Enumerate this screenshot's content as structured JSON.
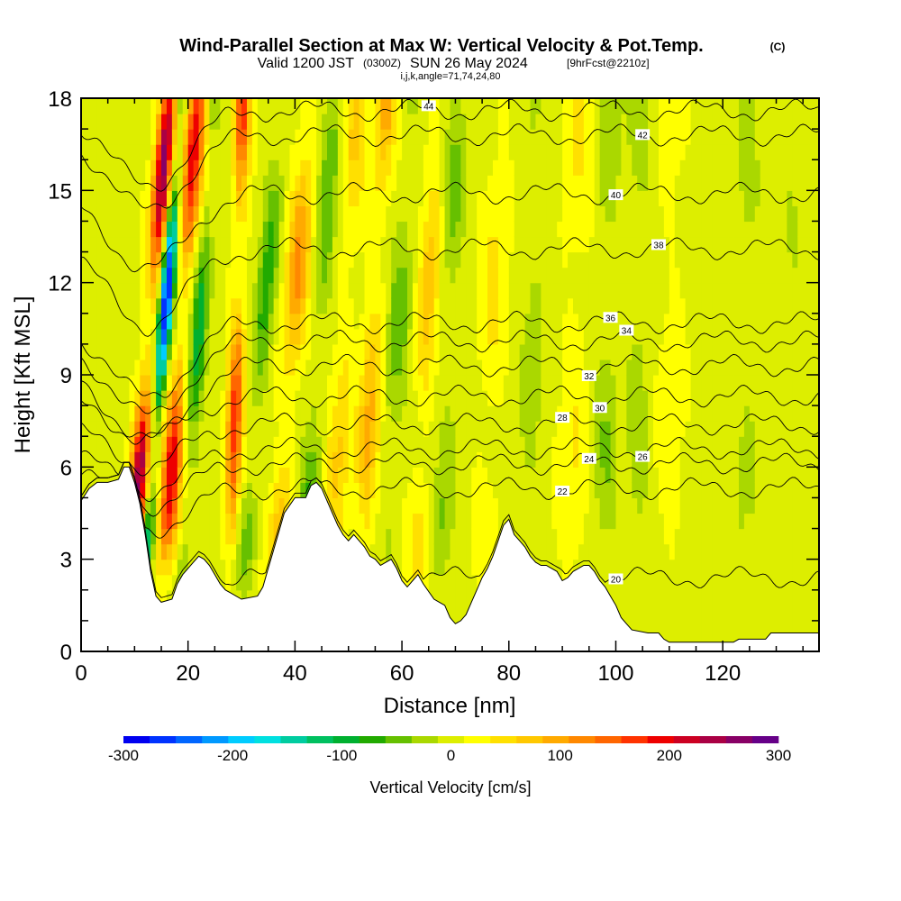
{
  "chart_data": {
    "type": "heatmap",
    "title": "Wind-Parallel Section at Max W: Vertical Velocity & Pot.Temp.",
    "title_mark": "(C)",
    "subtitle_valid": "Valid 1200 JST",
    "subtitle_utc": "(0300Z)",
    "subtitle_date": "SUN 26 May 2024",
    "subtitle_fcst": "[9hrFcst@2210z]",
    "subtitle_indices": "i,j,k,angle=71,74,24,80",
    "xlabel": "Distance [nm]",
    "ylabel": "Height [Kft MSL]",
    "xlim": [
      0,
      138
    ],
    "ylim": [
      0,
      18
    ],
    "x_ticks": [
      "0",
      "20",
      "40",
      "60",
      "80",
      "100",
      "120"
    ],
    "y_ticks": [
      "0",
      "3",
      "6",
      "9",
      "12",
      "15",
      "18"
    ],
    "colorbar": {
      "label": "Vertical Velocity [cm/s]",
      "range": [
        -300,
        300
      ],
      "ticks": [
        "-300",
        "-200",
        "-100",
        "0",
        "100",
        "200",
        "300"
      ],
      "colors": [
        "#0000f0",
        "#0033ff",
        "#0066ff",
        "#0099ff",
        "#00ccff",
        "#00e0e0",
        "#00cca0",
        "#00c060",
        "#00b030",
        "#22aa00",
        "#66c000",
        "#aad800",
        "#ddee00",
        "#ffff00",
        "#ffe000",
        "#ffc800",
        "#ffaa00",
        "#ff8800",
        "#ff6600",
        "#ff3300",
        "#ee0000",
        "#cc0022",
        "#aa0044",
        "#880066",
        "#660088"
      ]
    },
    "theta_contour_labels": [
      "20",
      "22",
      "24",
      "26",
      "28",
      "30",
      "32",
      "34",
      "36",
      "38",
      "40",
      "42",
      "44"
    ],
    "theta_contours": [
      {
        "label": "20",
        "base": 2.4,
        "lx": 100
      },
      {
        "label": "22",
        "base": 5.3,
        "lx": 90
      },
      {
        "label": "24",
        "base": 6.1,
        "lx": 95
      },
      {
        "label": "26",
        "base": 6.6,
        "lx": 105
      },
      {
        "label": "28",
        "base": 7.4,
        "lx": 90
      },
      {
        "label": "30",
        "base": 8.3,
        "lx": 97
      },
      {
        "label": "32",
        "base": 9.3,
        "lx": 95
      },
      {
        "label": "34",
        "base": 10.1,
        "lx": 102
      },
      {
        "label": "36",
        "base": 10.7,
        "lx": 99
      },
      {
        "label": "38",
        "base": 13.1,
        "lx": 108
      },
      {
        "label": "40",
        "base": 14.9,
        "lx": 100
      },
      {
        "label": "42",
        "base": 16.8,
        "lx": 105
      },
      {
        "label": "44",
        "base": 17.6,
        "lx": 65
      }
    ],
    "w_features": [
      {
        "x": 11,
        "w": 1.6,
        "amp": 260,
        "tilt": 0.45
      },
      {
        "x": 13.5,
        "w": 1.2,
        "amp": -300,
        "tilt": 0.45
      },
      {
        "x": 17,
        "w": 1.8,
        "amp": 200,
        "tilt": 0.4
      },
      {
        "x": 20.5,
        "w": 1.5,
        "amp": -110,
        "tilt": 0.35
      },
      {
        "x": 28.5,
        "w": 1.4,
        "amp": 170,
        "tilt": 0.15
      },
      {
        "x": 32,
        "w": 1.8,
        "amp": -90,
        "tilt": 0.45
      },
      {
        "x": 38,
        "w": 2.2,
        "amp": 110,
        "tilt": 0.4
      },
      {
        "x": 43,
        "w": 2.0,
        "amp": -70,
        "tilt": 0.35
      },
      {
        "x": 48,
        "w": 2.2,
        "amp": 60,
        "tilt": 0.3
      },
      {
        "x": 53.5,
        "w": 2.0,
        "amp": 90,
        "tilt": 0.3
      },
      {
        "x": 58,
        "w": 2.2,
        "amp": -60,
        "tilt": 0.3
      },
      {
        "x": 63.5,
        "w": 2.0,
        "amp": 70,
        "tilt": 0.25
      },
      {
        "x": 68,
        "w": 2.0,
        "amp": -50,
        "tilt": 0.2
      },
      {
        "x": 76,
        "w": 2.4,
        "amp": 40,
        "tilt": 0.2
      },
      {
        "x": 84,
        "w": 2.4,
        "amp": -35,
        "tilt": 0.1
      },
      {
        "x": 92,
        "w": 2.6,
        "amp": 35,
        "tilt": 0.1
      },
      {
        "x": 98,
        "w": 2.2,
        "amp": -45,
        "tilt": 0.1
      },
      {
        "x": 104,
        "w": 2.2,
        "amp": -35,
        "tilt": 0.05
      },
      {
        "x": 110,
        "w": 2.4,
        "amp": 25,
        "tilt": 0.05
      },
      {
        "x": 124,
        "w": 3.0,
        "amp": -25,
        "tilt": 0.05
      },
      {
        "x": 132,
        "w": 3.0,
        "amp": -20,
        "tilt": 0.05
      }
    ],
    "terrain_kft": [
      [
        0,
        4.9
      ],
      [
        1.5,
        5.3
      ],
      [
        3,
        5.5
      ],
      [
        5,
        5.5
      ],
      [
        7,
        5.6
      ],
      [
        8,
        6.0
      ],
      [
        9,
        6.0
      ],
      [
        10,
        5.5
      ],
      [
        11,
        4.8
      ],
      [
        12,
        3.8
      ],
      [
        13,
        2.6
      ],
      [
        14,
        1.8
      ],
      [
        15,
        1.6
      ],
      [
        17,
        1.7
      ],
      [
        18,
        2.2
      ],
      [
        19,
        2.5
      ],
      [
        21,
        2.9
      ],
      [
        22,
        3.1
      ],
      [
        23,
        3.0
      ],
      [
        24,
        2.8
      ],
      [
        25,
        2.5
      ],
      [
        26,
        2.2
      ],
      [
        27,
        2.0
      ],
      [
        28,
        1.9
      ],
      [
        30,
        1.7
      ],
      [
        33,
        1.8
      ],
      [
        34,
        2.1
      ],
      [
        35,
        2.7
      ],
      [
        36,
        3.3
      ],
      [
        37,
        3.9
      ],
      [
        38,
        4.5
      ],
      [
        40,
        5.0
      ],
      [
        42,
        5.0
      ],
      [
        43,
        5.4
      ],
      [
        44,
        5.5
      ],
      [
        45,
        5.3
      ],
      [
        46,
        4.9
      ],
      [
        47,
        4.5
      ],
      [
        48,
        4.1
      ],
      [
        49,
        3.8
      ],
      [
        50,
        3.6
      ],
      [
        51,
        3.8
      ],
      [
        52,
        3.6
      ],
      [
        53,
        3.4
      ],
      [
        54,
        3.1
      ],
      [
        55,
        3.0
      ],
      [
        56,
        2.8
      ],
      [
        57,
        2.9
      ],
      [
        58,
        3.0
      ],
      [
        59,
        2.7
      ],
      [
        60,
        2.3
      ],
      [
        61,
        2.1
      ],
      [
        62,
        2.3
      ],
      [
        63,
        2.5
      ],
      [
        64,
        2.2
      ],
      [
        66,
        1.7
      ],
      [
        67,
        1.6
      ],
      [
        68,
        1.5
      ],
      [
        69,
        1.1
      ],
      [
        70,
        0.9
      ],
      [
        71,
        1.0
      ],
      [
        72,
        1.2
      ],
      [
        73,
        1.6
      ],
      [
        74,
        2.0
      ],
      [
        75,
        2.4
      ],
      [
        76,
        2.7
      ],
      [
        77,
        3.1
      ],
      [
        78,
        3.6
      ],
      [
        79,
        4.1
      ],
      [
        80,
        4.3
      ],
      [
        81,
        3.8
      ],
      [
        82,
        3.6
      ],
      [
        83,
        3.4
      ],
      [
        84,
        3.1
      ],
      [
        85,
        2.9
      ],
      [
        86,
        2.8
      ],
      [
        87,
        2.8
      ],
      [
        89,
        2.6
      ],
      [
        90,
        2.3
      ],
      [
        91,
        2.4
      ],
      [
        92,
        2.6
      ],
      [
        93,
        2.7
      ],
      [
        94,
        2.8
      ],
      [
        95,
        2.8
      ],
      [
        96,
        2.6
      ],
      [
        97,
        2.3
      ],
      [
        98,
        2.1
      ],
      [
        99,
        1.8
      ],
      [
        100,
        1.5
      ],
      [
        101,
        1.1
      ],
      [
        102,
        0.9
      ],
      [
        103,
        0.7
      ],
      [
        106,
        0.6
      ],
      [
        108,
        0.6
      ],
      [
        109,
        0.4
      ],
      [
        110,
        0.3
      ],
      [
        120,
        0.3
      ],
      [
        122,
        0.3
      ],
      [
        123,
        0.4
      ],
      [
        128,
        0.4
      ],
      [
        129,
        0.6
      ],
      [
        138,
        0.6
      ]
    ]
  }
}
